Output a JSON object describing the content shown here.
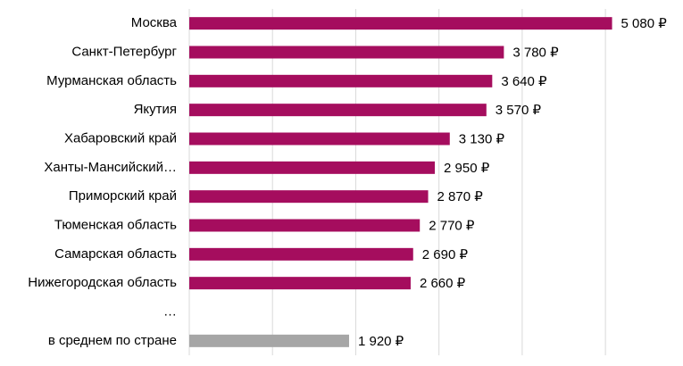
{
  "chart_data": {
    "type": "hbar",
    "categories": [
      "Москва",
      "Санкт-Петербург",
      "Мурманская область",
      "Якутия",
      "Хабаровский край",
      "Ханты-Мансийский…",
      "Приморский край",
      "Тюменская область",
      "Самарская область",
      "Нижегородская область",
      "…",
      "в среднем по стране"
    ],
    "values": [
      5080,
      3780,
      3640,
      3570,
      3130,
      2950,
      2870,
      2770,
      2690,
      2660,
      null,
      1920
    ],
    "value_labels": [
      "5 080 ₽",
      "3 780 ₽",
      "3 640 ₽",
      "3 570 ₽",
      "3 130 ₽",
      "2 950 ₽",
      "2 870 ₽",
      "2 770 ₽",
      "2 690 ₽",
      "2 660 ₽",
      null,
      "1 920 ₽"
    ],
    "colors": [
      "#a50d5e",
      "#a50d5e",
      "#a50d5e",
      "#a50d5e",
      "#a50d5e",
      "#a50d5e",
      "#a50d5e",
      "#a50d5e",
      "#a50d5e",
      "#a50d5e",
      null,
      "#a6a6a6"
    ],
    "xlim": [
      0,
      5900
    ],
    "xticks": [
      0,
      1000,
      2000,
      3000,
      4000,
      5000
    ],
    "grid": true
  }
}
